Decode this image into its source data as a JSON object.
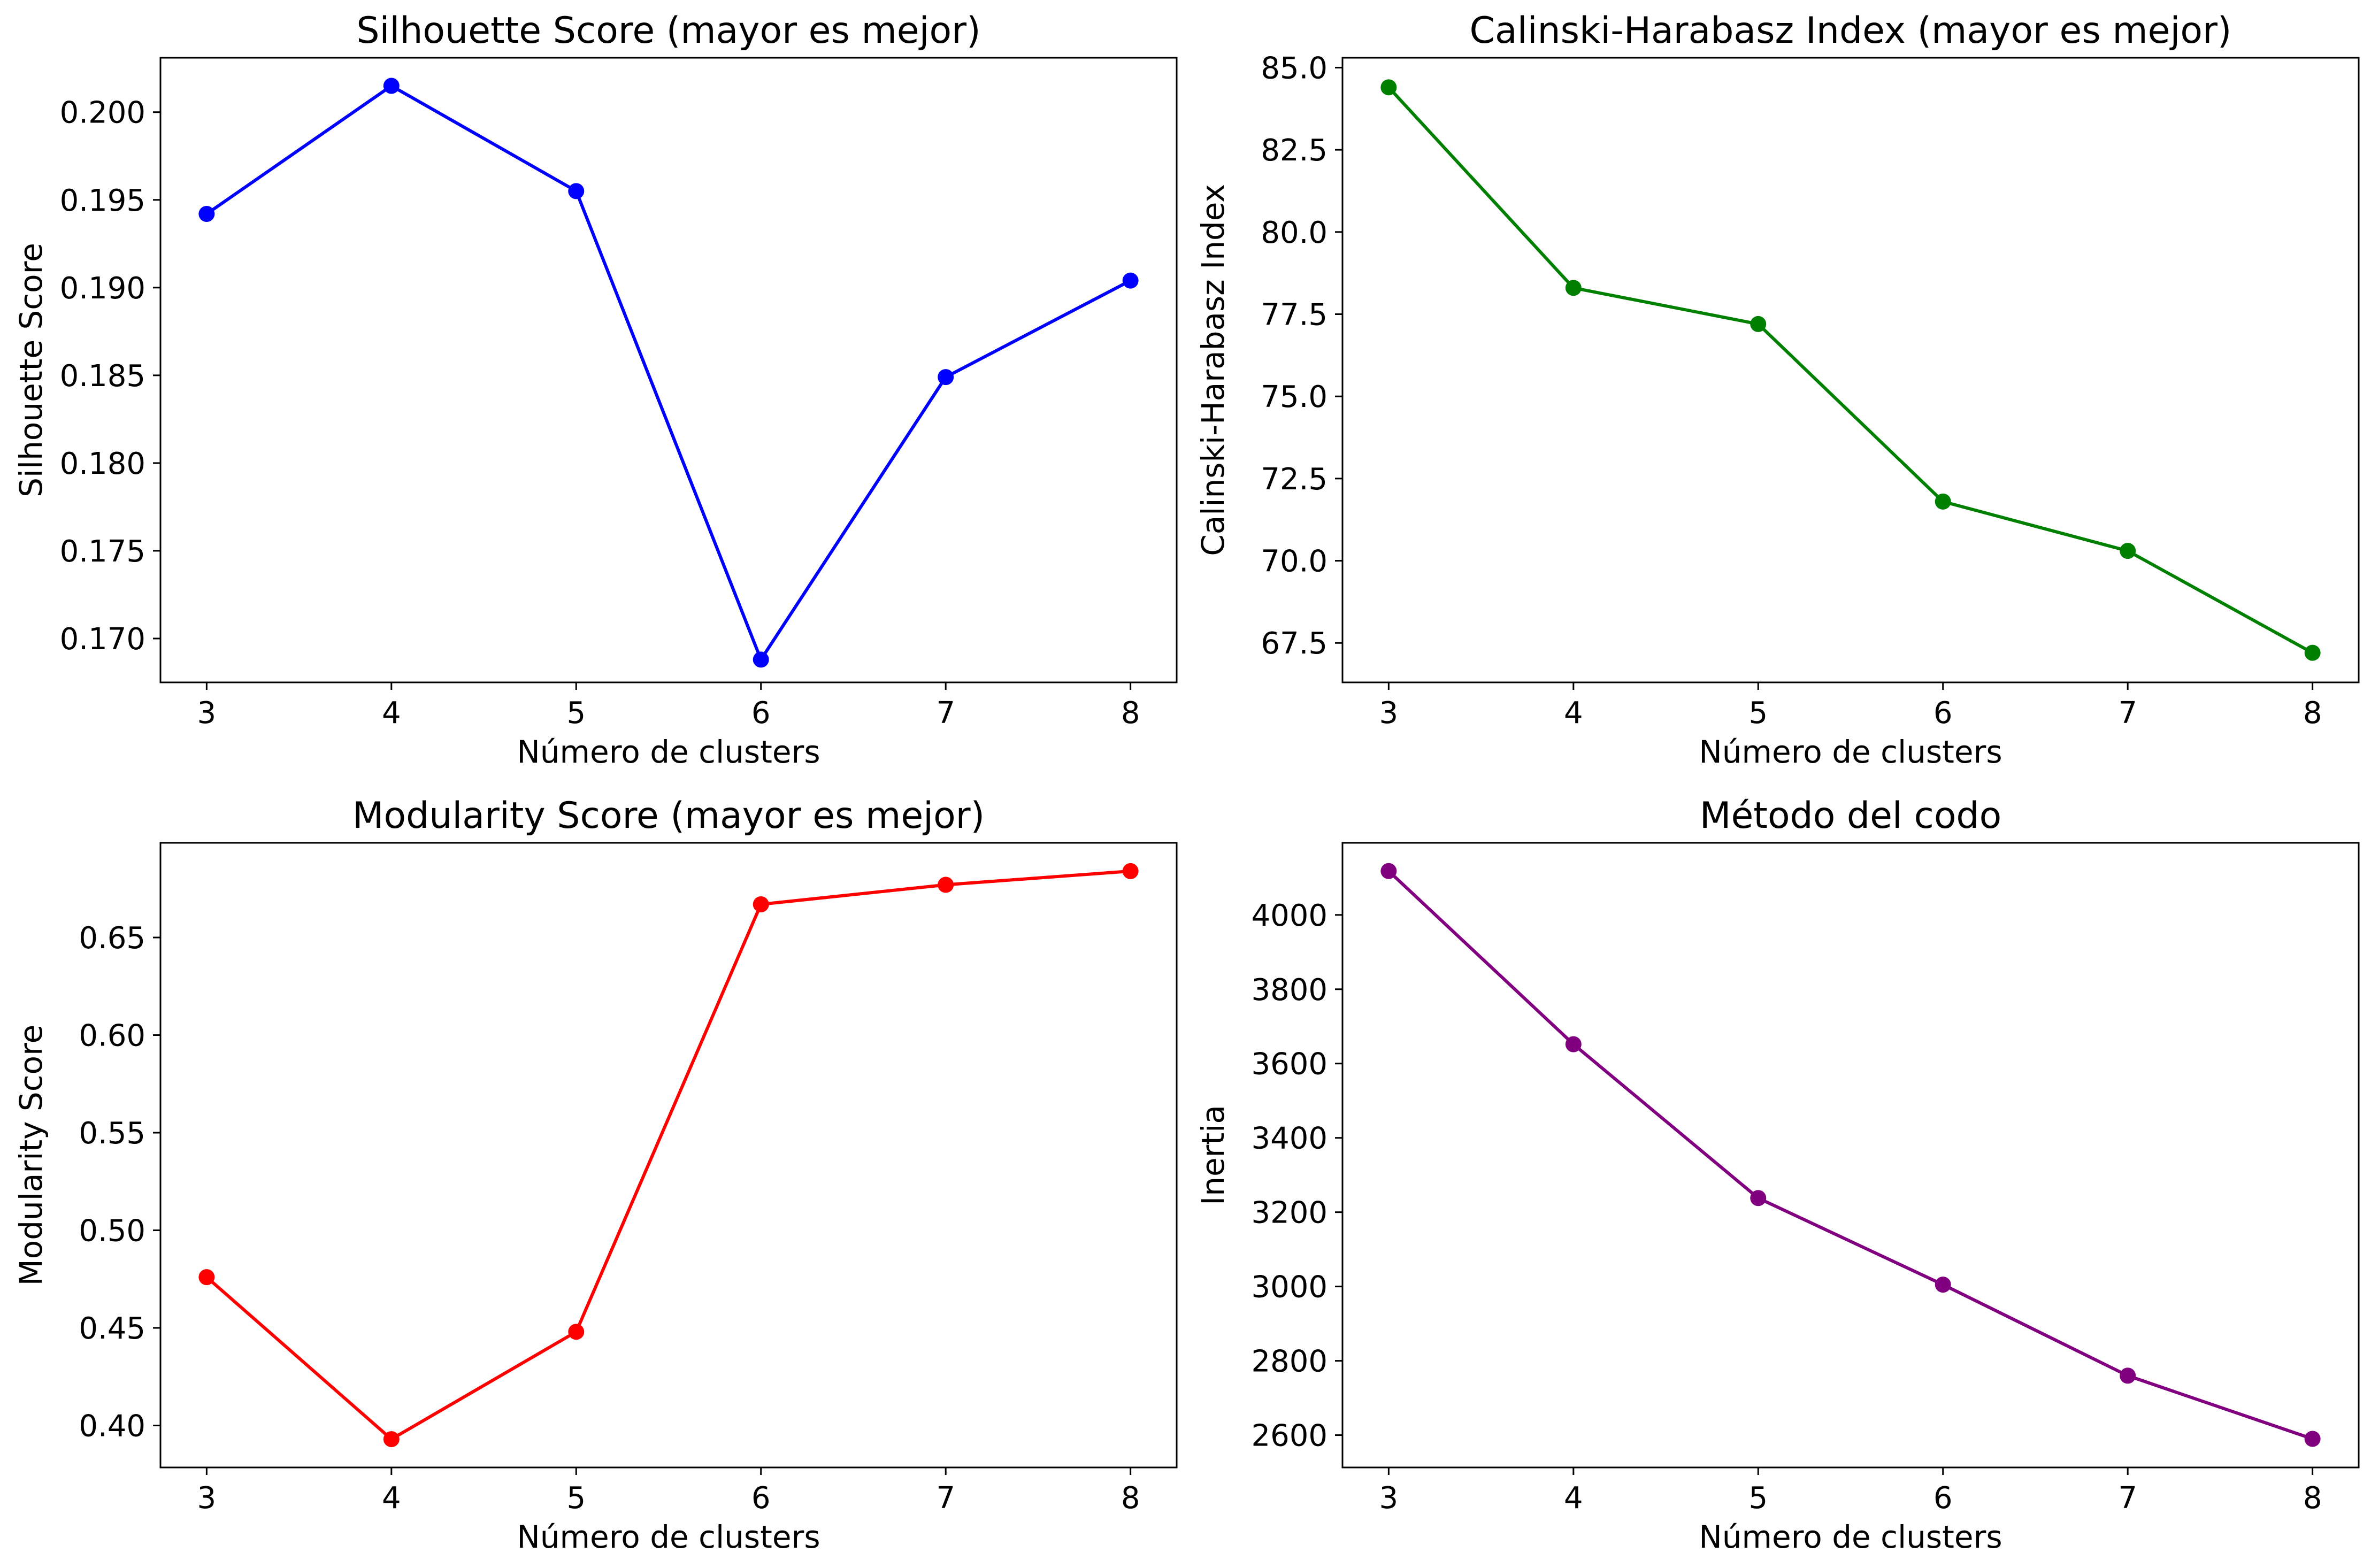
{
  "chart_data": [
    {
      "type": "line",
      "title": "Silhouette Score (mayor es mejor)",
      "xlabel": "Número de clusters",
      "ylabel": "Silhouette Score",
      "x": [
        3,
        4,
        5,
        6,
        7,
        8
      ],
      "series": [
        {
          "values": [
            0.1942,
            0.2015,
            0.1955,
            0.1688,
            0.1849,
            0.1904
          ],
          "color": "#0000ff"
        }
      ],
      "xlim": [
        2.75,
        8.25
      ],
      "ylim": [
        0.1675,
        0.2031
      ],
      "xticks": [
        3,
        4,
        5,
        6,
        7,
        8
      ],
      "yticks": [
        0.17,
        0.175,
        0.18,
        0.185,
        0.19,
        0.195,
        0.2
      ],
      "ytick_labels": [
        "0.170",
        "0.175",
        "0.180",
        "0.185",
        "0.190",
        "0.195",
        "0.200"
      ],
      "grid": false,
      "marker": "circle"
    },
    {
      "type": "line",
      "title": "Calinski-Harabasz Index (mayor es mejor)",
      "xlabel": "Número de clusters",
      "ylabel": "Calinski-Harabasz Index",
      "x": [
        3,
        4,
        5,
        6,
        7,
        8
      ],
      "series": [
        {
          "values": [
            84.4,
            78.3,
            77.2,
            71.8,
            70.3,
            67.2
          ],
          "color": "#008000"
        }
      ],
      "xlim": [
        2.75,
        8.25
      ],
      "ylim": [
        66.3,
        85.3
      ],
      "xticks": [
        3,
        4,
        5,
        6,
        7,
        8
      ],
      "yticks": [
        67.5,
        70.0,
        72.5,
        75.0,
        77.5,
        80.0,
        82.5,
        85.0
      ],
      "ytick_labels": [
        "67.5",
        "70.0",
        "72.5",
        "75.0",
        "77.5",
        "80.0",
        "82.5",
        "85.0"
      ],
      "grid": false,
      "marker": "circle"
    },
    {
      "type": "line",
      "title": "Modularity Score (mayor es mejor)",
      "xlabel": "Número de clusters",
      "ylabel": "Modularity Score",
      "x": [
        3,
        4,
        5,
        6,
        7,
        8
      ],
      "series": [
        {
          "values": [
            0.476,
            0.393,
            0.448,
            0.667,
            0.677,
            0.684
          ],
          "color": "#ff0000"
        }
      ],
      "xlim": [
        2.75,
        8.25
      ],
      "ylim": [
        0.3785,
        0.6985
      ],
      "xticks": [
        3,
        4,
        5,
        6,
        7,
        8
      ],
      "yticks": [
        0.4,
        0.45,
        0.5,
        0.55,
        0.6,
        0.65
      ],
      "ytick_labels": [
        "0.40",
        "0.45",
        "0.50",
        "0.55",
        "0.60",
        "0.65"
      ],
      "grid": false,
      "marker": "circle"
    },
    {
      "type": "line",
      "title": "Método del codo",
      "xlabel": "Número de clusters",
      "ylabel": "Inertia",
      "x": [
        3,
        4,
        5,
        6,
        7,
        8
      ],
      "series": [
        {
          "values": [
            4118,
            3652,
            3238,
            3005,
            2760,
            2590
          ],
          "color": "#800080"
        }
      ],
      "xlim": [
        2.75,
        8.25
      ],
      "ylim": [
        2513,
        4194
      ],
      "xticks": [
        3,
        4,
        5,
        6,
        7,
        8
      ],
      "yticks": [
        2600,
        2800,
        3000,
        3200,
        3400,
        3600,
        3800,
        4000
      ],
      "ytick_labels": [
        "2600",
        "2800",
        "3000",
        "3200",
        "3400",
        "3600",
        "3800",
        "4000"
      ],
      "grid": false,
      "marker": "circle"
    }
  ]
}
